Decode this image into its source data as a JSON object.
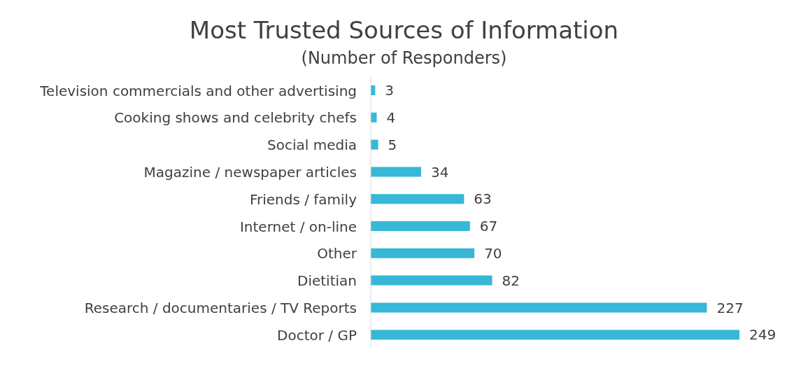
{
  "chart_data": {
    "type": "bar",
    "orientation": "horizontal",
    "title": "Most Trusted Sources of Information",
    "subtitle": "(Number of Responders)",
    "categories": [
      "Television commercials and other advertising",
      "Cooking shows and celebrity chefs",
      "Social media",
      "Magazine / newspaper articles",
      "Friends / family",
      "Internet / on-line",
      "Other",
      "Dietitian",
      "Research / documentaries / TV Reports",
      "Doctor / GP"
    ],
    "values": [
      3,
      4,
      5,
      34,
      63,
      67,
      70,
      82,
      227,
      249
    ],
    "color": "#36b8d6",
    "data_labels": true
  }
}
